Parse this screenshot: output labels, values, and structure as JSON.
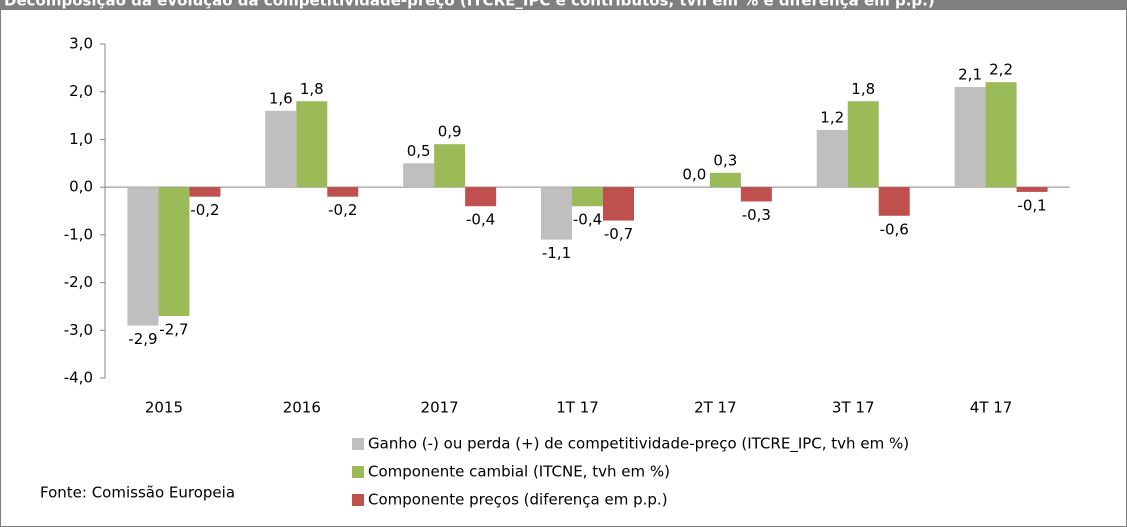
{
  "chart_data": {
    "type": "bar",
    "title": "Decomposição da evolução da competitividade-preço (ITCRE_IPC e contributos, tvh em % e diferença em p.p.)",
    "categories": [
      "2015",
      "2016",
      "2017",
      "1T 17",
      "2T 17",
      "3T 17",
      "4T 17"
    ],
    "series": [
      {
        "name": "Ganho (-) ou perda (+) de competitividade-preço (ITCRE_IPC, tvh em %)",
        "color": "#bfbfbf",
        "values": [
          -2.9,
          1.6,
          0.5,
          -1.1,
          0.0,
          1.2,
          2.1
        ],
        "value_labels": [
          "-2,9",
          "1,6",
          "0,5",
          "-1,1",
          "0,0",
          "1,2",
          "2,1"
        ]
      },
      {
        "name": "Componente cambial (ITCNE, tvh em %)",
        "color": "#9bbb59",
        "values": [
          -2.7,
          1.8,
          0.9,
          -0.4,
          0.3,
          1.8,
          2.2
        ],
        "value_labels": [
          "-2,7",
          "1,8",
          "0,9",
          "-0,4",
          "0,3",
          "1,8",
          "2,2"
        ]
      },
      {
        "name": "Componente preços (diferença em p.p.)",
        "color": "#c0504d",
        "values": [
          -0.2,
          -0.2,
          -0.4,
          -0.7,
          -0.3,
          -0.6,
          -0.1
        ],
        "value_labels": [
          "-0,2",
          "-0,2",
          "-0,4",
          "-0,7",
          "-0,3",
          "-0,6",
          "-0,1"
        ]
      }
    ],
    "ylim": [
      -4,
      3
    ],
    "yticks": [
      {
        "value": -4,
        "label": "-4,0"
      },
      {
        "value": -3,
        "label": "-3,0"
      },
      {
        "value": -2,
        "label": "-2,0"
      },
      {
        "value": -1,
        "label": "-1,0"
      },
      {
        "value": 0,
        "label": "0,0"
      },
      {
        "value": 1,
        "label": "1,0"
      },
      {
        "value": 2,
        "label": "2,0"
      },
      {
        "value": 3,
        "label": "3,0"
      }
    ],
    "grid": false,
    "source": "Fonte:  Comissão Europeia"
  }
}
